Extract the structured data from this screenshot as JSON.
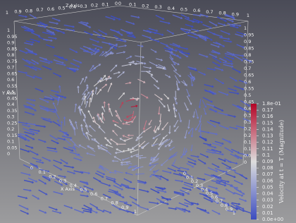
{
  "view": {
    "axes": {
      "x": {
        "label": "X Axis",
        "ticks": [
          0,
          0.1,
          0.2,
          0.3,
          0.4,
          0.5,
          0.6,
          0.7,
          0.8,
          0.9,
          1
        ]
      },
      "y": {
        "label": "Y Axis",
        "ticks": [
          0,
          0.05,
          0.1,
          0.15,
          0.2,
          0.25,
          0.3,
          0.35,
          0.4,
          0.45,
          0.5,
          0.55,
          0.6,
          0.65,
          0.7,
          0.75,
          0.8,
          0.85,
          0.9,
          0.95,
          1
        ]
      },
      "z": {
        "label": "Z Axis",
        "ticks": [
          0,
          0.1,
          0.2,
          0.3,
          0.4,
          0.5,
          0.6,
          0.7,
          0.8,
          0.9,
          1
        ]
      }
    },
    "colorbar": {
      "title": "Velocity at t = T (Magnitude)",
      "range": [
        0,
        0.18
      ],
      "ticks": [
        {
          "value": 0.18,
          "label": "1.8e-01"
        },
        0.17,
        0.16,
        0.15,
        0.14,
        0.13,
        0.12,
        0.11,
        0.1,
        0.09,
        0.08,
        0.07,
        0.06,
        0.05,
        0.04,
        0.03,
        0.02,
        0.01,
        {
          "value": 0,
          "label": "0.0e+00"
        }
      ]
    }
  }
}
